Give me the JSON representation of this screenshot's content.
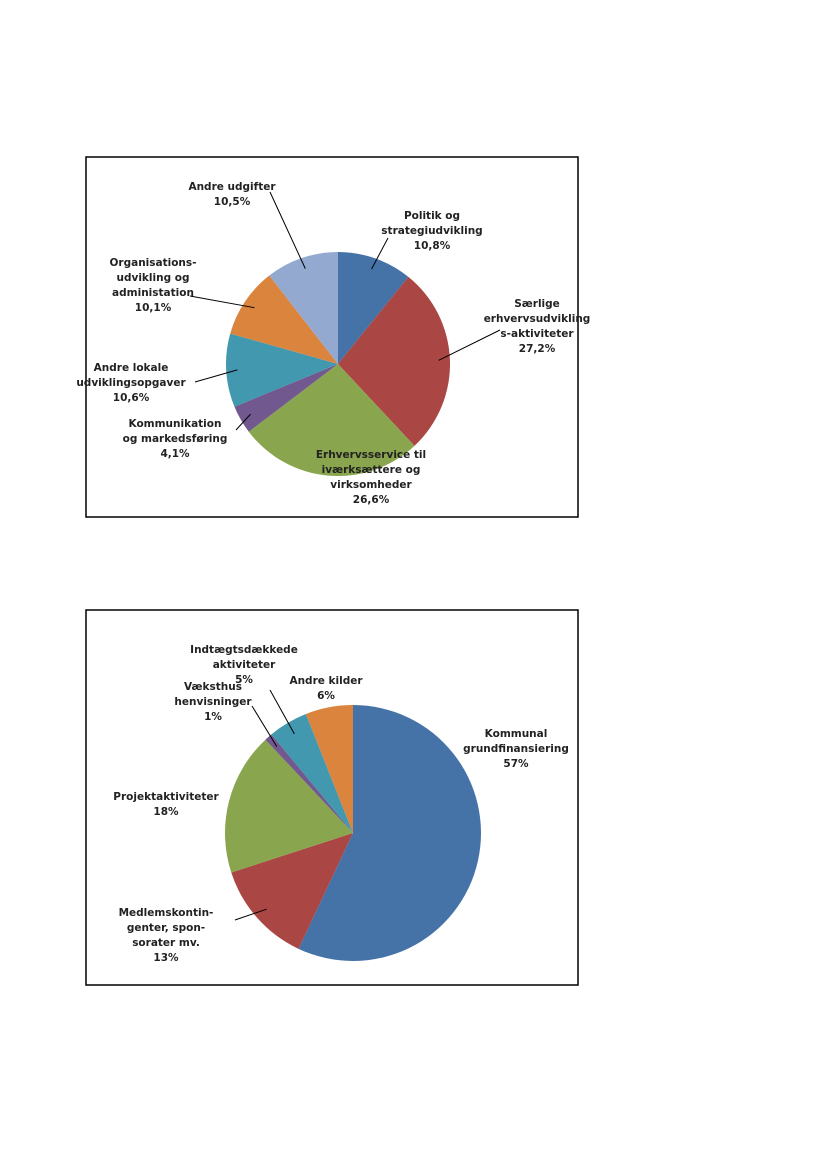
{
  "chart_data": [
    {
      "type": "pie",
      "labels": [
        [
          "Politik og",
          "strategiudvikling"
        ],
        [
          "Særlige",
          "erhvervsudvikling",
          "s-aktiviteter"
        ],
        [
          "Erhvervsservice til",
          "iværksættere og",
          "virksomheder"
        ],
        [
          "Kommunikation",
          "og markedsføring"
        ],
        [
          "Andre lokale",
          "udviklingsopgaver"
        ],
        [
          "Organisations-",
          "udvikling og",
          "administation"
        ],
        [
          "Andre udgifter"
        ]
      ],
      "values": [
        10.8,
        27.2,
        26.6,
        4.1,
        10.6,
        10.1,
        10.5
      ],
      "value_labels": [
        "10,8%",
        "27,2%",
        "26,6%",
        "4,1%",
        "10,6%",
        "10,1%",
        "10,5%"
      ],
      "colors": [
        "#4572A7",
        "#AA4643",
        "#89A54E",
        "#71588F",
        "#4198AF",
        "#DB843D",
        "#93A9CF"
      ]
    },
    {
      "type": "pie",
      "labels": [
        [
          "Kommunal",
          "grundfinansiering"
        ],
        [
          "Medlemskontin-",
          "genter, spon-",
          "sorater mv."
        ],
        [
          "Projektaktiviteter"
        ],
        [
          "Væksthus",
          "henvisninger"
        ],
        [
          "Indtægtsdækkede",
          "aktiviteter"
        ],
        [
          "Andre kilder"
        ]
      ],
      "values": [
        57,
        13,
        18,
        1,
        5,
        6
      ],
      "value_labels": [
        "57%",
        "13%",
        "18%",
        "1%",
        "5%",
        "6%"
      ],
      "colors": [
        "#4572A7",
        "#AA4643",
        "#89A54E",
        "#71588F",
        "#4198AF",
        "#DB843D"
      ]
    }
  ]
}
